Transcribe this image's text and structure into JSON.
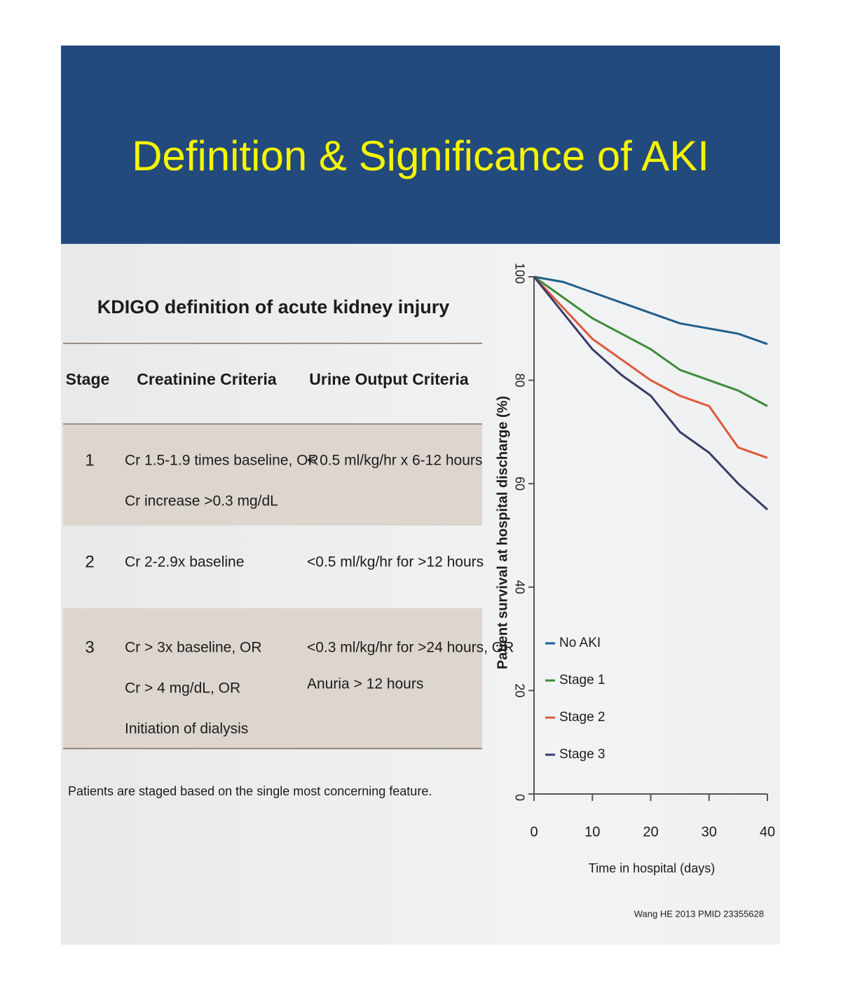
{
  "header": {
    "title": "Definition & Significance of AKI"
  },
  "table": {
    "title": "KDIGO definition of acute kidney injury",
    "columns": [
      "Stage",
      "Creatinine Criteria",
      "Urine Output Criteria"
    ],
    "rows": [
      {
        "stage": "1",
        "creatinine": [
          "Cr 1.5-1.9 times baseline, OR",
          "Cr increase >0.3 mg/dL"
        ],
        "urine": [
          "< 0.5 ml/kg/hr x 6-12 hours"
        ]
      },
      {
        "stage": "2",
        "creatinine": [
          "Cr 2-2.9x baseline"
        ],
        "urine": [
          "<0.5 ml/kg/hr for >12 hours"
        ]
      },
      {
        "stage": "3",
        "creatinine": [
          "Cr > 3x baseline, OR",
          "Cr > 4 mg/dL, OR",
          "Initiation of dialysis"
        ],
        "urine": [
          "<0.3 ml/kg/hr for >24 hours, OR",
          "Anuria > 12 hours"
        ]
      }
    ],
    "footnote": "Patients are staged based on the single most concerning feature."
  },
  "chart_data": {
    "type": "line",
    "x_label": "Time in hospital (days)",
    "y_label": "Patient survival at hospital discharge (%)",
    "source": "Wang HE 2013 PMID 23355628",
    "x": [
      0,
      5,
      10,
      15,
      20,
      25,
      30,
      35,
      40
    ],
    "series": [
      {
        "name": "No AKI",
        "color": "#1f5f8b",
        "values": [
          100,
          99,
          97,
          95,
          93,
          91,
          90,
          89,
          87
        ]
      },
      {
        "name": "Stage 1",
        "color": "#3d8c3a",
        "values": [
          100,
          96,
          92,
          89,
          86,
          82,
          80,
          78,
          75
        ]
      },
      {
        "name": "Stage 2",
        "color": "#e0573a",
        "values": [
          100,
          94,
          88,
          84,
          80,
          77,
          75,
          67,
          65
        ]
      },
      {
        "name": "Stage 3",
        "color": "#3a3a6a",
        "values": [
          100,
          93,
          86,
          81,
          77,
          70,
          66,
          60,
          55
        ]
      }
    ],
    "xlim": [
      0,
      40
    ],
    "ylim": [
      0,
      100
    ],
    "xticks": [
      0,
      10,
      20,
      30,
      40
    ],
    "yticks": [
      0,
      20,
      40,
      60,
      80,
      100
    ],
    "legend": "center-left"
  }
}
